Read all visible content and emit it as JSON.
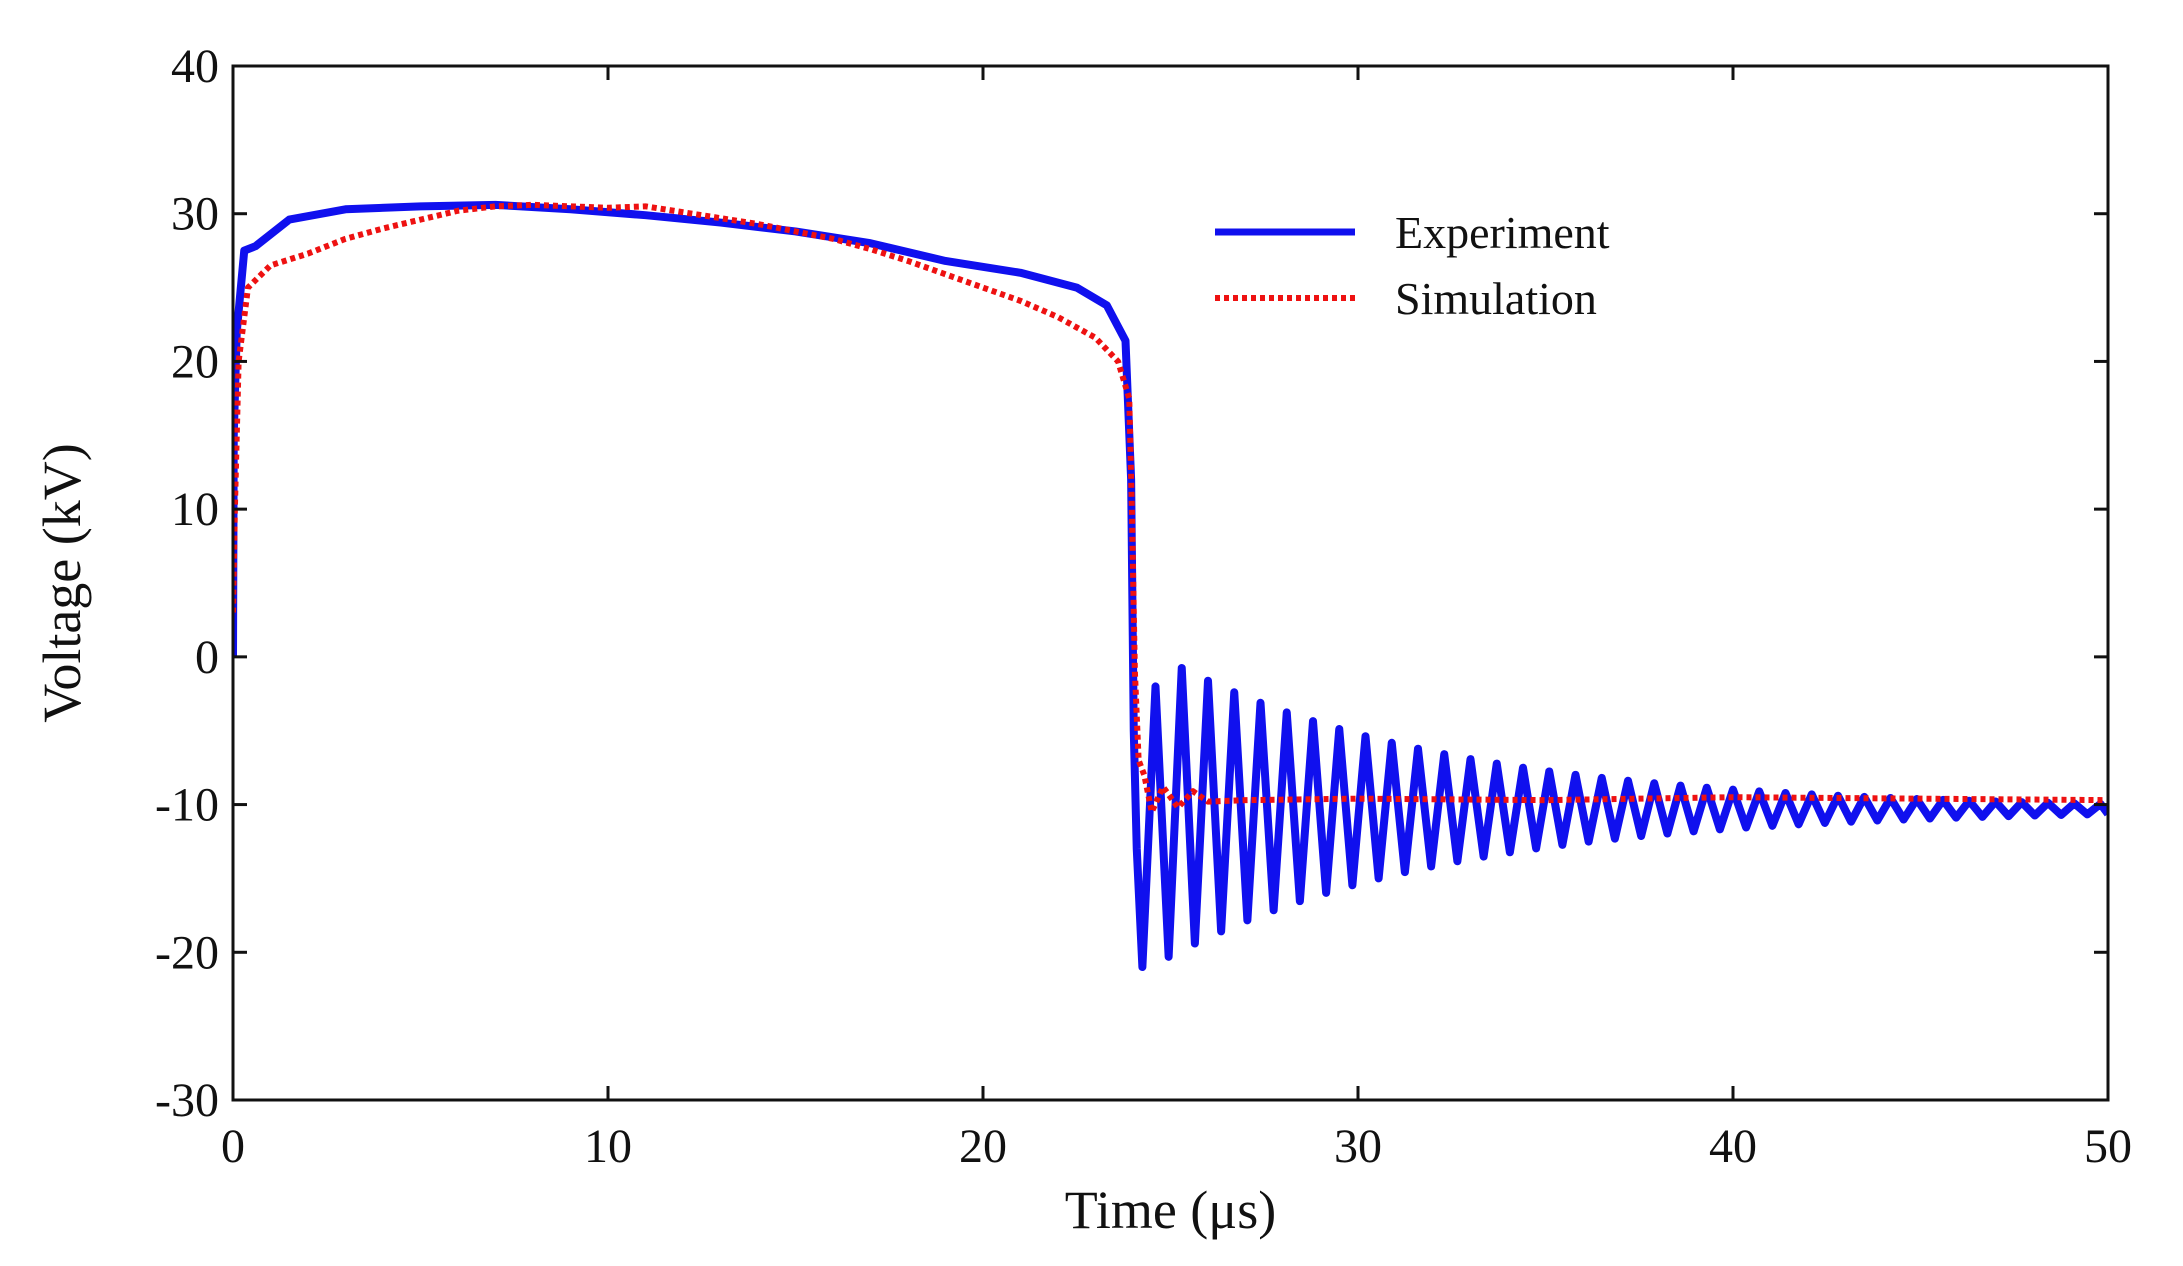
{
  "chart_data": {
    "type": "line",
    "title": "",
    "xlabel": "Time (μs)",
    "ylabel": "Voltage (kV)",
    "xlim": [
      0,
      50
    ],
    "ylim": [
      -30,
      40
    ],
    "xticks": [
      0,
      10,
      20,
      30,
      40,
      50
    ],
    "yticks": [
      -30,
      -20,
      -10,
      0,
      10,
      20,
      30,
      40
    ],
    "xtick_labels": [
      "0",
      "10",
      "20",
      "30",
      "40",
      "50"
    ],
    "ytick_labels": [
      "-30",
      "-20",
      "-10",
      "0",
      "10",
      "20",
      "30",
      "40"
    ],
    "grid": false,
    "legend_position": "top-right",
    "series": [
      {
        "name": "Experiment",
        "color": "#1010ee",
        "style": "solid",
        "points": [
          [
            0,
            0
          ],
          [
            0.02,
            15
          ],
          [
            0.1,
            22
          ],
          [
            0.3,
            27.5
          ],
          [
            0.6,
            27.8
          ],
          [
            1.5,
            29.6
          ],
          [
            3,
            30.3
          ],
          [
            5,
            30.5
          ],
          [
            7,
            30.6
          ],
          [
            9,
            30.3
          ],
          [
            11,
            29.9
          ],
          [
            13,
            29.4
          ],
          [
            15,
            28.8
          ],
          [
            17,
            28
          ],
          [
            19,
            26.8
          ],
          [
            21,
            26
          ],
          [
            22.5,
            25
          ],
          [
            23.3,
            23.8
          ],
          [
            23.8,
            21.4
          ],
          [
            23.95,
            12
          ],
          [
            24.02,
            -5
          ],
          [
            24.1,
            -13
          ],
          [
            24.25,
            -21
          ]
        ],
        "ringing": {
          "start": 24.25,
          "end": 50,
          "period": 0.7,
          "settle": -10.3,
          "amp0": 11,
          "decay": 0.135,
          "first_min": -21,
          "first_max": -2
        }
      },
      {
        "name": "Simulation",
        "color": "#ee1111",
        "style": "dotted",
        "points": [
          [
            0,
            3
          ],
          [
            0.05,
            10
          ],
          [
            0.15,
            20
          ],
          [
            0.4,
            25
          ],
          [
            1,
            26.5
          ],
          [
            2,
            27.3
          ],
          [
            3,
            28.3
          ],
          [
            4,
            29
          ],
          [
            5,
            29.6
          ],
          [
            6,
            30.2
          ],
          [
            7,
            30.5
          ],
          [
            8,
            30.6
          ],
          [
            9,
            30.5
          ],
          [
            10,
            30.4
          ],
          [
            11,
            30.5
          ],
          [
            12,
            30.1
          ],
          [
            13,
            29.7
          ],
          [
            14,
            29.3
          ],
          [
            15,
            28.8
          ],
          [
            16,
            28.3
          ],
          [
            17,
            27.6
          ],
          [
            18,
            26.8
          ],
          [
            19,
            25.9
          ],
          [
            20,
            25
          ],
          [
            21,
            24.1
          ],
          [
            22,
            23
          ],
          [
            23,
            21.6
          ],
          [
            23.6,
            20
          ],
          [
            23.9,
            17.5
          ],
          [
            23.97,
            10
          ],
          [
            24.05,
            -1
          ],
          [
            24.15,
            -7
          ],
          [
            24.3,
            -8
          ],
          [
            24.5,
            -10.5
          ],
          [
            24.8,
            -8.8
          ],
          [
            25.2,
            -10.2
          ],
          [
            25.6,
            -9.1
          ],
          [
            26,
            -9.8
          ],
          [
            27,
            -9.7
          ],
          [
            30,
            -9.6
          ],
          [
            35,
            -9.7
          ],
          [
            40,
            -9.5
          ],
          [
            45,
            -9.6
          ],
          [
            50,
            -9.7
          ]
        ]
      }
    ]
  }
}
